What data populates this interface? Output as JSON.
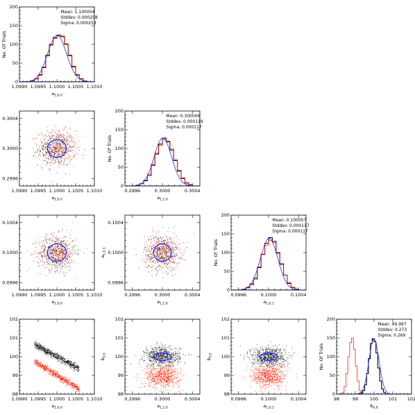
{
  "chart_data": [
    {
      "id": "hist_a10",
      "type": "histogram",
      "xlabel": "a",
      "xlabel_sub": "1,0,0",
      "ylabel": "No. Of Trials",
      "xlim": [
        1.099,
        1.101
      ],
      "ylim": [
        0,
        200
      ],
      "xticks": [
        "1.0990",
        "1.0995",
        "1.1000",
        "1.1005",
        "1.1010"
      ],
      "yticks": [
        "0",
        "50",
        "100",
        "150",
        "200"
      ],
      "stats": {
        "mean": "Mean: 1.100004",
        "stddev": "Stddev: 0.000258",
        "sigma": "Sigma: 0.000253"
      },
      "gauss": {
        "mu": 1.100004,
        "sigma": 0.000253,
        "peak": 124
      },
      "series": [
        {
          "name": "black",
          "color": "#000000",
          "bin_start": 1.0993,
          "bin_width": 0.0001,
          "values": [
            3,
            8,
            18,
            38,
            70,
            100,
            118,
            125,
            122,
            100,
            70,
            40,
            18,
            8,
            2
          ]
        },
        {
          "name": "red",
          "color": "#ff2000",
          "bin_start": 1.0993,
          "bin_width": 0.0001,
          "values": [
            4,
            9,
            20,
            40,
            72,
            98,
            116,
            122,
            120,
            102,
            72,
            42,
            20,
            9,
            3
          ]
        }
      ]
    },
    {
      "id": "scatter_a11_a10",
      "type": "scatter",
      "xlabel": "a",
      "xlabel_sub": "1,0,0",
      "ylabel": "a",
      "ylabel_sub": "1,1,0",
      "xlim": [
        1.099,
        1.101
      ],
      "ylim": [
        0.2995,
        0.3005
      ],
      "xticks": [
        "1.0990",
        "1.0995",
        "1.1000",
        "1.1005",
        "1.1010"
      ],
      "yticks": [
        "0.2996",
        "0.3000",
        "0.3004"
      ],
      "yticks_values": [
        0.2996,
        0.3,
        0.3004
      ],
      "cloud": {
        "center": [
          1.1,
          0.3
        ],
        "sigma": [
          0.00025,
          0.000117
        ],
        "n": 800
      },
      "ellipse": {
        "center": [
          1.1,
          0.3
        ],
        "radii": [
          0.00025,
          0.000117
        ]
      }
    },
    {
      "id": "hist_a11",
      "type": "histogram",
      "xlabel": "a",
      "xlabel_sub": "1,1,0",
      "ylabel": "No. Of Trials",
      "xlim": [
        0.2995,
        0.3005
      ],
      "ylim": [
        0,
        200
      ],
      "xticks": [
        "0.2996",
        "0.3000",
        "0.3004"
      ],
      "xticks_values": [
        0.2996,
        0.3,
        0.3004
      ],
      "yticks": [
        "0",
        "50",
        "100",
        "150",
        "200"
      ],
      "stats": {
        "mean": "Mean: 0.300006",
        "stddev": "Stddev: 0.000119",
        "sigma": "Sigma: 0.000117"
      },
      "gauss": {
        "mu": 0.300006,
        "sigma": 0.000117,
        "peak": 128
      },
      "series": [
        {
          "name": "black",
          "color": "#000000",
          "bin_start": 0.29965,
          "bin_width": 5e-05,
          "values": [
            2,
            6,
            14,
            28,
            55,
            85,
            112,
            128,
            118,
            96,
            68,
            40,
            20,
            8,
            3
          ]
        },
        {
          "name": "red",
          "color": "#ff2000",
          "bin_start": 0.29965,
          "bin_width": 5e-05,
          "values": [
            3,
            7,
            16,
            32,
            58,
            88,
            108,
            124,
            120,
            100,
            70,
            42,
            22,
            9,
            4
          ]
        }
      ]
    },
    {
      "id": "scatter_a101_a10",
      "type": "scatter",
      "xlabel": "a",
      "xlabel_sub": "1,0,0",
      "ylabel": "a",
      "ylabel_sub": "1,0,1",
      "xlim": [
        1.099,
        1.101
      ],
      "ylim": [
        0.0995,
        0.1005
      ],
      "xticks": [
        "1.0990",
        "1.0995",
        "1.1000",
        "1.1005",
        "1.1010"
      ],
      "yticks": [
        "0.0996",
        "0.1000",
        "0.1004"
      ],
      "yticks_values": [
        0.0996,
        0.1,
        0.1004
      ],
      "cloud": {
        "center": [
          1.1,
          0.1
        ],
        "sigma": [
          0.00025,
          0.000117
        ],
        "n": 800
      },
      "ellipse": {
        "center": [
          1.1,
          0.1
        ],
        "radii": [
          0.00025,
          0.000117
        ]
      }
    },
    {
      "id": "scatter_a101_a11",
      "type": "scatter",
      "xlabel": "a",
      "xlabel_sub": "1,1,0",
      "ylabel": "a",
      "ylabel_sub": "1,0,1",
      "xlim": [
        0.2995,
        0.3005
      ],
      "ylim": [
        0.0995,
        0.1005
      ],
      "xticks": [
        "0.2996",
        "0.3000",
        "0.3004"
      ],
      "xticks_values": [
        0.2996,
        0.3,
        0.3004
      ],
      "yticks": [
        "0.0996",
        "0.1000",
        "0.1004"
      ],
      "yticks_values": [
        0.0996,
        0.1,
        0.1004
      ],
      "cloud": {
        "center": [
          0.3,
          0.1
        ],
        "sigma": [
          0.000117,
          0.000117
        ],
        "n": 800
      },
      "ellipse": {
        "center": [
          0.3,
          0.1
        ],
        "radii": [
          0.000117,
          0.000117
        ]
      }
    },
    {
      "id": "hist_a101",
      "type": "histogram",
      "xlabel": "a",
      "xlabel_sub": "1,0,1",
      "ylabel": "No. Of Trials",
      "xlim": [
        0.0995,
        0.1005
      ],
      "ylim": [
        0,
        200
      ],
      "xticks": [
        "0.0996",
        "0.1000",
        "0.1004"
      ],
      "xticks_values": [
        0.0996,
        0.1,
        0.1004
      ],
      "yticks": [
        "0",
        "50",
        "100",
        "150",
        "200"
      ],
      "stats": {
        "mean": "Mean: 0.100007",
        "stddev": "Stddev: 0.000117",
        "sigma": "Sigma: 0.000117"
      },
      "gauss": {
        "mu": 0.100007,
        "sigma": 0.000117,
        "peak": 138
      },
      "series": [
        {
          "name": "black",
          "color": "#000000",
          "bin_start": 0.09965,
          "bin_width": 5e-05,
          "values": [
            2,
            6,
            15,
            30,
            60,
            95,
            125,
            140,
            130,
            100,
            70,
            40,
            18,
            7,
            2
          ]
        },
        {
          "name": "red",
          "color": "#ff2000",
          "bin_start": 0.09965,
          "bin_width": 5e-05,
          "values": [
            3,
            8,
            18,
            34,
            62,
            96,
            120,
            132,
            126,
            98,
            68,
            40,
            20,
            8,
            3
          ]
        }
      ]
    },
    {
      "id": "scatter_b00_a10",
      "type": "scatter",
      "xlabel": "a",
      "xlabel_sub": "1,0,0",
      "ylabel": "b",
      "ylabel_sub": "0,0",
      "xlim": [
        1.099,
        1.101
      ],
      "ylim": [
        98,
        102
      ],
      "xticks": [
        "1.0990",
        "1.0995",
        "1.1000",
        "1.1005",
        "1.1010"
      ],
      "yticks": [
        "98",
        "99",
        "100",
        "101",
        "102"
      ],
      "yticks_values": [
        98,
        99,
        100,
        101,
        102
      ],
      "bands": [
        {
          "color": "#000000",
          "x_range": [
            1.0994,
            1.1006
          ],
          "y_at_start": 100.65,
          "y_at_end": 99.35,
          "spread": 0.09,
          "n": 700
        },
        {
          "color": "#ff2000",
          "x_range": [
            1.0994,
            1.1006
          ],
          "y_at_start": 99.75,
          "y_at_end": 98.25,
          "spread": 0.09,
          "n": 700
        }
      ]
    },
    {
      "id": "scatter_b00_a11",
      "type": "scatter",
      "xlabel": "a",
      "xlabel_sub": "1,1,0",
      "ylabel": "b",
      "ylabel_sub": "0,0",
      "xlim": [
        0.2995,
        0.3005
      ],
      "ylim": [
        98,
        102
      ],
      "xticks": [
        "0.2996",
        "0.3000",
        "0.3004"
      ],
      "xticks_values": [
        0.2996,
        0.3,
        0.3004
      ],
      "yticks": [
        "98",
        "99",
        "100",
        "101",
        "102"
      ],
      "yticks_values": [
        98,
        99,
        100,
        101,
        102
      ],
      "clouds": [
        {
          "color": "#000000",
          "center": [
            0.3,
            99.997
          ],
          "sigma": [
            0.000117,
            0.273
          ],
          "n": 700
        },
        {
          "color": "#ff2000",
          "center": [
            0.3,
            98.95
          ],
          "sigma": [
            0.000117,
            0.3
          ],
          "n": 700
        }
      ],
      "ellipse": {
        "center": [
          0.3,
          99.997
        ],
        "radii": [
          0.000117,
          0.2
        ]
      }
    },
    {
      "id": "scatter_b00_a101",
      "type": "scatter",
      "xlabel": "a",
      "xlabel_sub": "1,0,1",
      "ylabel": "b",
      "ylabel_sub": "0,0",
      "xlim": [
        0.0995,
        0.1005
      ],
      "ylim": [
        98,
        102
      ],
      "xticks": [
        "0.0996",
        "0.1000",
        "0.1004"
      ],
      "xticks_values": [
        0.0996,
        0.1,
        0.1004
      ],
      "yticks": [
        "98",
        "99",
        "100",
        "101",
        "102"
      ],
      "yticks_values": [
        98,
        99,
        100,
        101,
        102
      ],
      "clouds": [
        {
          "color": "#000000",
          "center": [
            0.1,
            99.997
          ],
          "sigma": [
            0.000117,
            0.273
          ],
          "n": 700
        },
        {
          "color": "#ff2000",
          "center": [
            0.1,
            98.95
          ],
          "sigma": [
            0.000117,
            0.3
          ],
          "n": 700
        }
      ],
      "ellipse": {
        "center": [
          0.1,
          99.997
        ],
        "radii": [
          0.000117,
          0.2
        ]
      }
    },
    {
      "id": "hist_b00",
      "type": "histogram",
      "xlabel": "b",
      "xlabel_sub": "0,0",
      "ylabel": "No. Of Trials",
      "xlim": [
        98,
        102
      ],
      "ylim": [
        0,
        200
      ],
      "xticks": [
        "98",
        "99",
        "100",
        "101",
        "102"
      ],
      "xticks_values": [
        98,
        99,
        100,
        101,
        102
      ],
      "yticks": [
        "0",
        "50",
        "100",
        "150",
        "200"
      ],
      "stats": {
        "mean": "Mean: 99.997",
        "stddev": "Stddev: 0.273",
        "sigma": "Sigma: 0.269"
      },
      "gauss": {
        "mu": 99.997,
        "sigma": 0.269,
        "peak": 148
      },
      "series": [
        {
          "name": "black",
          "color": "#000000",
          "bin_start": 99.2,
          "bin_width": 0.1,
          "values": [
            1,
            4,
            10,
            25,
            55,
            95,
            135,
            148,
            140,
            110,
            70,
            35,
            14,
            5,
            1,
            0
          ]
        },
        {
          "name": "red",
          "color": "#ff2000",
          "bin_start": 98.2,
          "bin_width": 0.1,
          "values": [
            1,
            5,
            20,
            55,
            100,
            138,
            150,
            120,
            75,
            35,
            10,
            2,
            0
          ]
        }
      ]
    }
  ]
}
